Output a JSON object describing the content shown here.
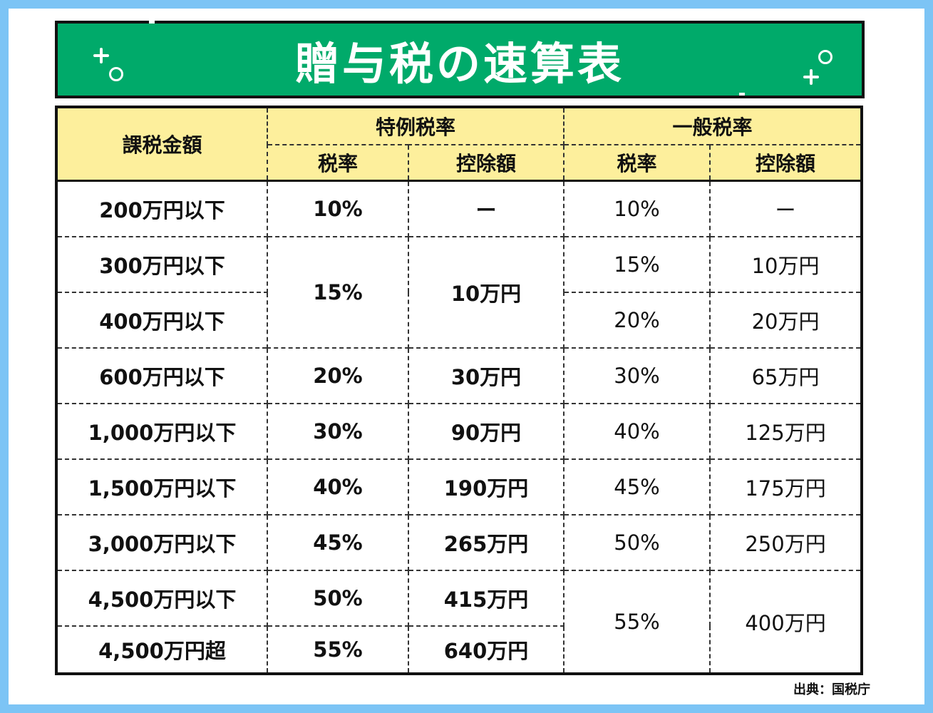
{
  "title": "贈与税の速算表",
  "source": "出典：国税庁",
  "headers": {
    "amount": "課税金額",
    "special_group": "特例税率",
    "general_group": "一般税率",
    "special_rate": "税率",
    "special_deduction": "控除額",
    "general_rate": "税率",
    "general_deduction": "控除額"
  },
  "rows": [
    {
      "amount": "200万円以下",
      "special_rate": "10%",
      "special_deduction": "ー",
      "general_rate": "10%",
      "general_deduction": "ー"
    },
    {
      "amount": "300万円以下",
      "special_rate": "15%",
      "special_deduction": "10万円",
      "general_rate": "15%",
      "general_deduction": "10万円"
    },
    {
      "amount": "400万円以下",
      "general_rate": "20%",
      "general_deduction": "20万円"
    },
    {
      "amount": "600万円以下",
      "special_rate": "20%",
      "special_deduction": "30万円",
      "general_rate": "30%",
      "general_deduction": "65万円"
    },
    {
      "amount": "1,000万円以下",
      "special_rate": "30%",
      "special_deduction": "90万円",
      "general_rate": "40%",
      "general_deduction": "125万円"
    },
    {
      "amount": "1,500万円以下",
      "special_rate": "40%",
      "special_deduction": "190万円",
      "general_rate": "45%",
      "general_deduction": "175万円"
    },
    {
      "amount": "3,000万円以下",
      "special_rate": "45%",
      "special_deduction": "265万円",
      "general_rate": "50%",
      "general_deduction": "250万円"
    },
    {
      "amount": "4,500万円以下",
      "special_rate": "50%",
      "special_deduction": "415万円",
      "general_rate": "55%",
      "general_deduction": "400万円"
    },
    {
      "amount": "4,500万円超",
      "special_rate": "55%",
      "special_deduction": "640万円"
    }
  ],
  "colors": {
    "page_border": "#7cc4f5",
    "title_bg": "#00aa6a",
    "header_bg": "#fdef9c"
  },
  "icons": [
    "plus-icon",
    "ring-icon"
  ]
}
